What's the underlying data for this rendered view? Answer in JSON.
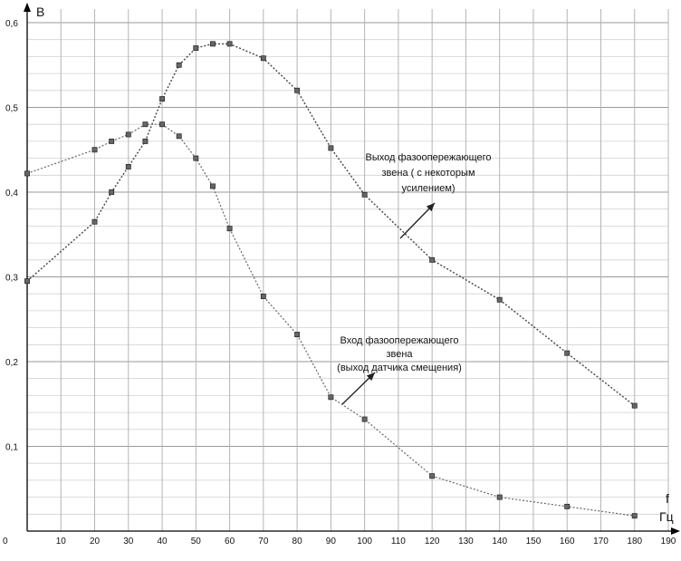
{
  "chart_data": {
    "type": "line",
    "title": "",
    "xlabel": "f\nГц",
    "ylabel": "В",
    "xlim": [
      0,
      190
    ],
    "ylim": [
      0,
      0.6
    ],
    "x_ticks": [
      "0",
      "10",
      "20",
      "30",
      "40",
      "50",
      "60",
      "70",
      "80",
      "90",
      "100",
      "110",
      "120",
      "130",
      "140",
      "150",
      "160",
      "170",
      "180",
      "190"
    ],
    "y_ticks": [
      "0,1",
      "0,2",
      "0,3",
      "0,4",
      "0,5",
      "0,6"
    ],
    "grid": true,
    "series": [
      {
        "name": "Выход фазоопережающего звена ( с некоторым усилением)",
        "points": [
          [
            0,
            0.295
          ],
          [
            20,
            0.365
          ],
          [
            25,
            0.4
          ],
          [
            30,
            0.43
          ],
          [
            35,
            0.46
          ],
          [
            40,
            0.51
          ],
          [
            45,
            0.55
          ],
          [
            50,
            0.57
          ],
          [
            55,
            0.575
          ],
          [
            60,
            0.575
          ],
          [
            70,
            0.558
          ],
          [
            80,
            0.52
          ],
          [
            90,
            0.452
          ],
          [
            100,
            0.397
          ],
          [
            120,
            0.32
          ],
          [
            140,
            0.273
          ],
          [
            160,
            0.21
          ],
          [
            180,
            0.148
          ]
        ]
      },
      {
        "name": "Вход фазоопережающего звена (выход датчика смещения)",
        "points": [
          [
            0,
            0.422
          ],
          [
            20,
            0.45
          ],
          [
            25,
            0.46
          ],
          [
            30,
            0.468
          ],
          [
            35,
            0.48
          ],
          [
            40,
            0.48
          ],
          [
            45,
            0.466
          ],
          [
            50,
            0.44
          ],
          [
            55,
            0.407
          ],
          [
            60,
            0.357
          ],
          [
            70,
            0.277
          ],
          [
            80,
            0.232
          ],
          [
            90,
            0.158
          ],
          [
            100,
            0.132
          ],
          [
            120,
            0.065
          ],
          [
            140,
            0.04
          ],
          [
            160,
            0.029
          ],
          [
            180,
            0.018
          ]
        ]
      }
    ],
    "annotations": [
      {
        "lines": [
          "Выход фазоопережающего",
          "звена ( с некоторым",
          "усилением)"
        ]
      },
      {
        "lines": [
          "Вход фазоопережающего",
          "звена",
          "(выход датчика смещения)"
        ]
      }
    ]
  }
}
